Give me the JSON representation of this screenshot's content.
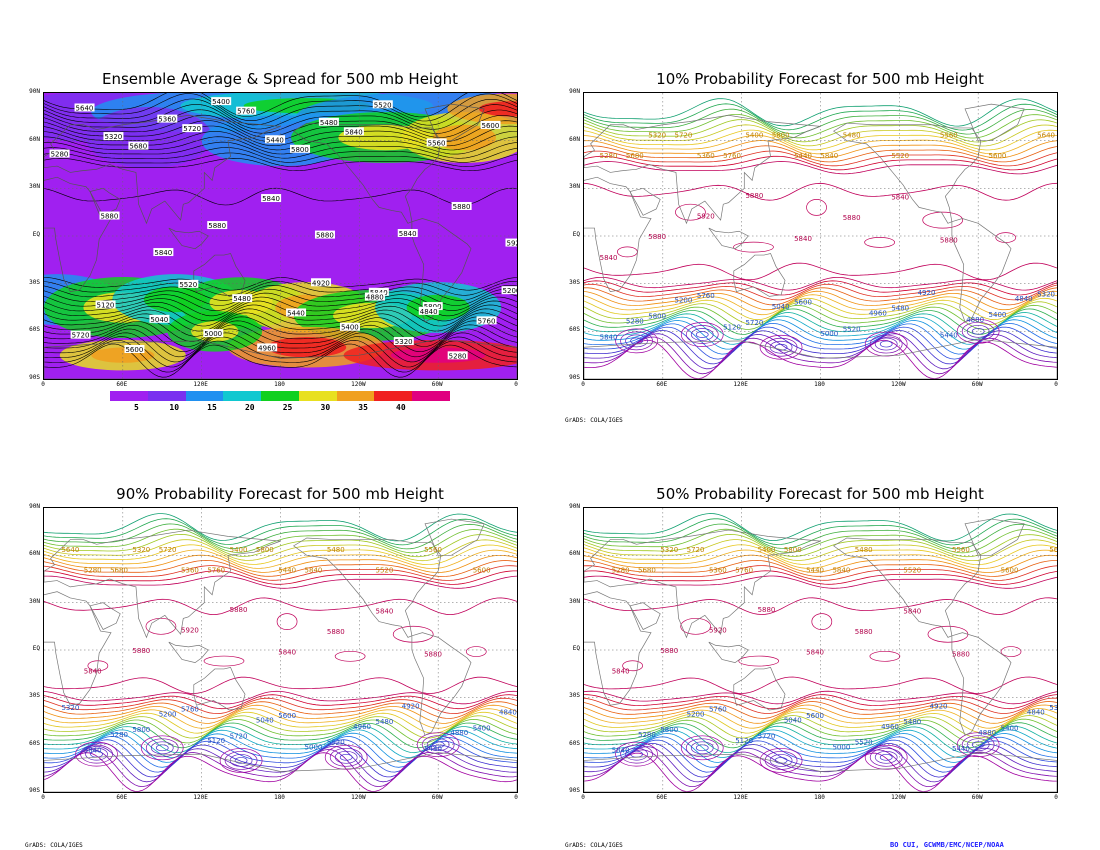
{
  "panels": {
    "top_left": {
      "title": "Ensemble Average & Spread for 500 mb Height"
    },
    "top_right": {
      "title": "10% Probability Forecast for 500 mb Height"
    },
    "bottom_left": {
      "title": "90% Probability Forecast for 500 mb Height"
    },
    "bottom_right": {
      "title": "50% Probability Forecast for 500 mb Height"
    }
  },
  "axes": {
    "lat_labels": [
      "90N",
      "60N",
      "30N",
      "EQ",
      "30S",
      "60S",
      "90S"
    ],
    "lon_labels": [
      "0",
      "60E",
      "120E",
      "180",
      "120W",
      "60W",
      "0"
    ]
  },
  "colorbar": {
    "labels": [
      "5",
      "10",
      "15",
      "20",
      "25",
      "30",
      "35",
      "40"
    ],
    "colors": [
      "#a020f0",
      "#7a30f0",
      "#2090f0",
      "#10c8d0",
      "#10d020",
      "#e8e020",
      "#f0a020",
      "#f02020",
      "#e00080"
    ]
  },
  "credits": {
    "grads": "GrADS: COLA/IGES"
  },
  "footer": {
    "text": "BO CUI, GCWMB/EMC/NCEP/NOAA"
  },
  "contours": {
    "north_labels": [
      "5280",
      "5320",
      "5360",
      "5400",
      "5440",
      "5480",
      "5520",
      "5560",
      "5600",
      "5640",
      "5680",
      "5720",
      "5760",
      "5800",
      "5840"
    ],
    "tropic_labels": [
      "5840",
      "5880",
      "5920",
      "5880",
      "5840",
      "5880",
      "5840",
      "5880"
    ],
    "south_labels": [
      "5840",
      "5800",
      "5760",
      "5720",
      "5600",
      "5520",
      "5480",
      "5440",
      "5400",
      "5320",
      "5280",
      "5200",
      "5120",
      "5040",
      "5000",
      "4960",
      "4920",
      "4880",
      "4840"
    ]
  }
}
